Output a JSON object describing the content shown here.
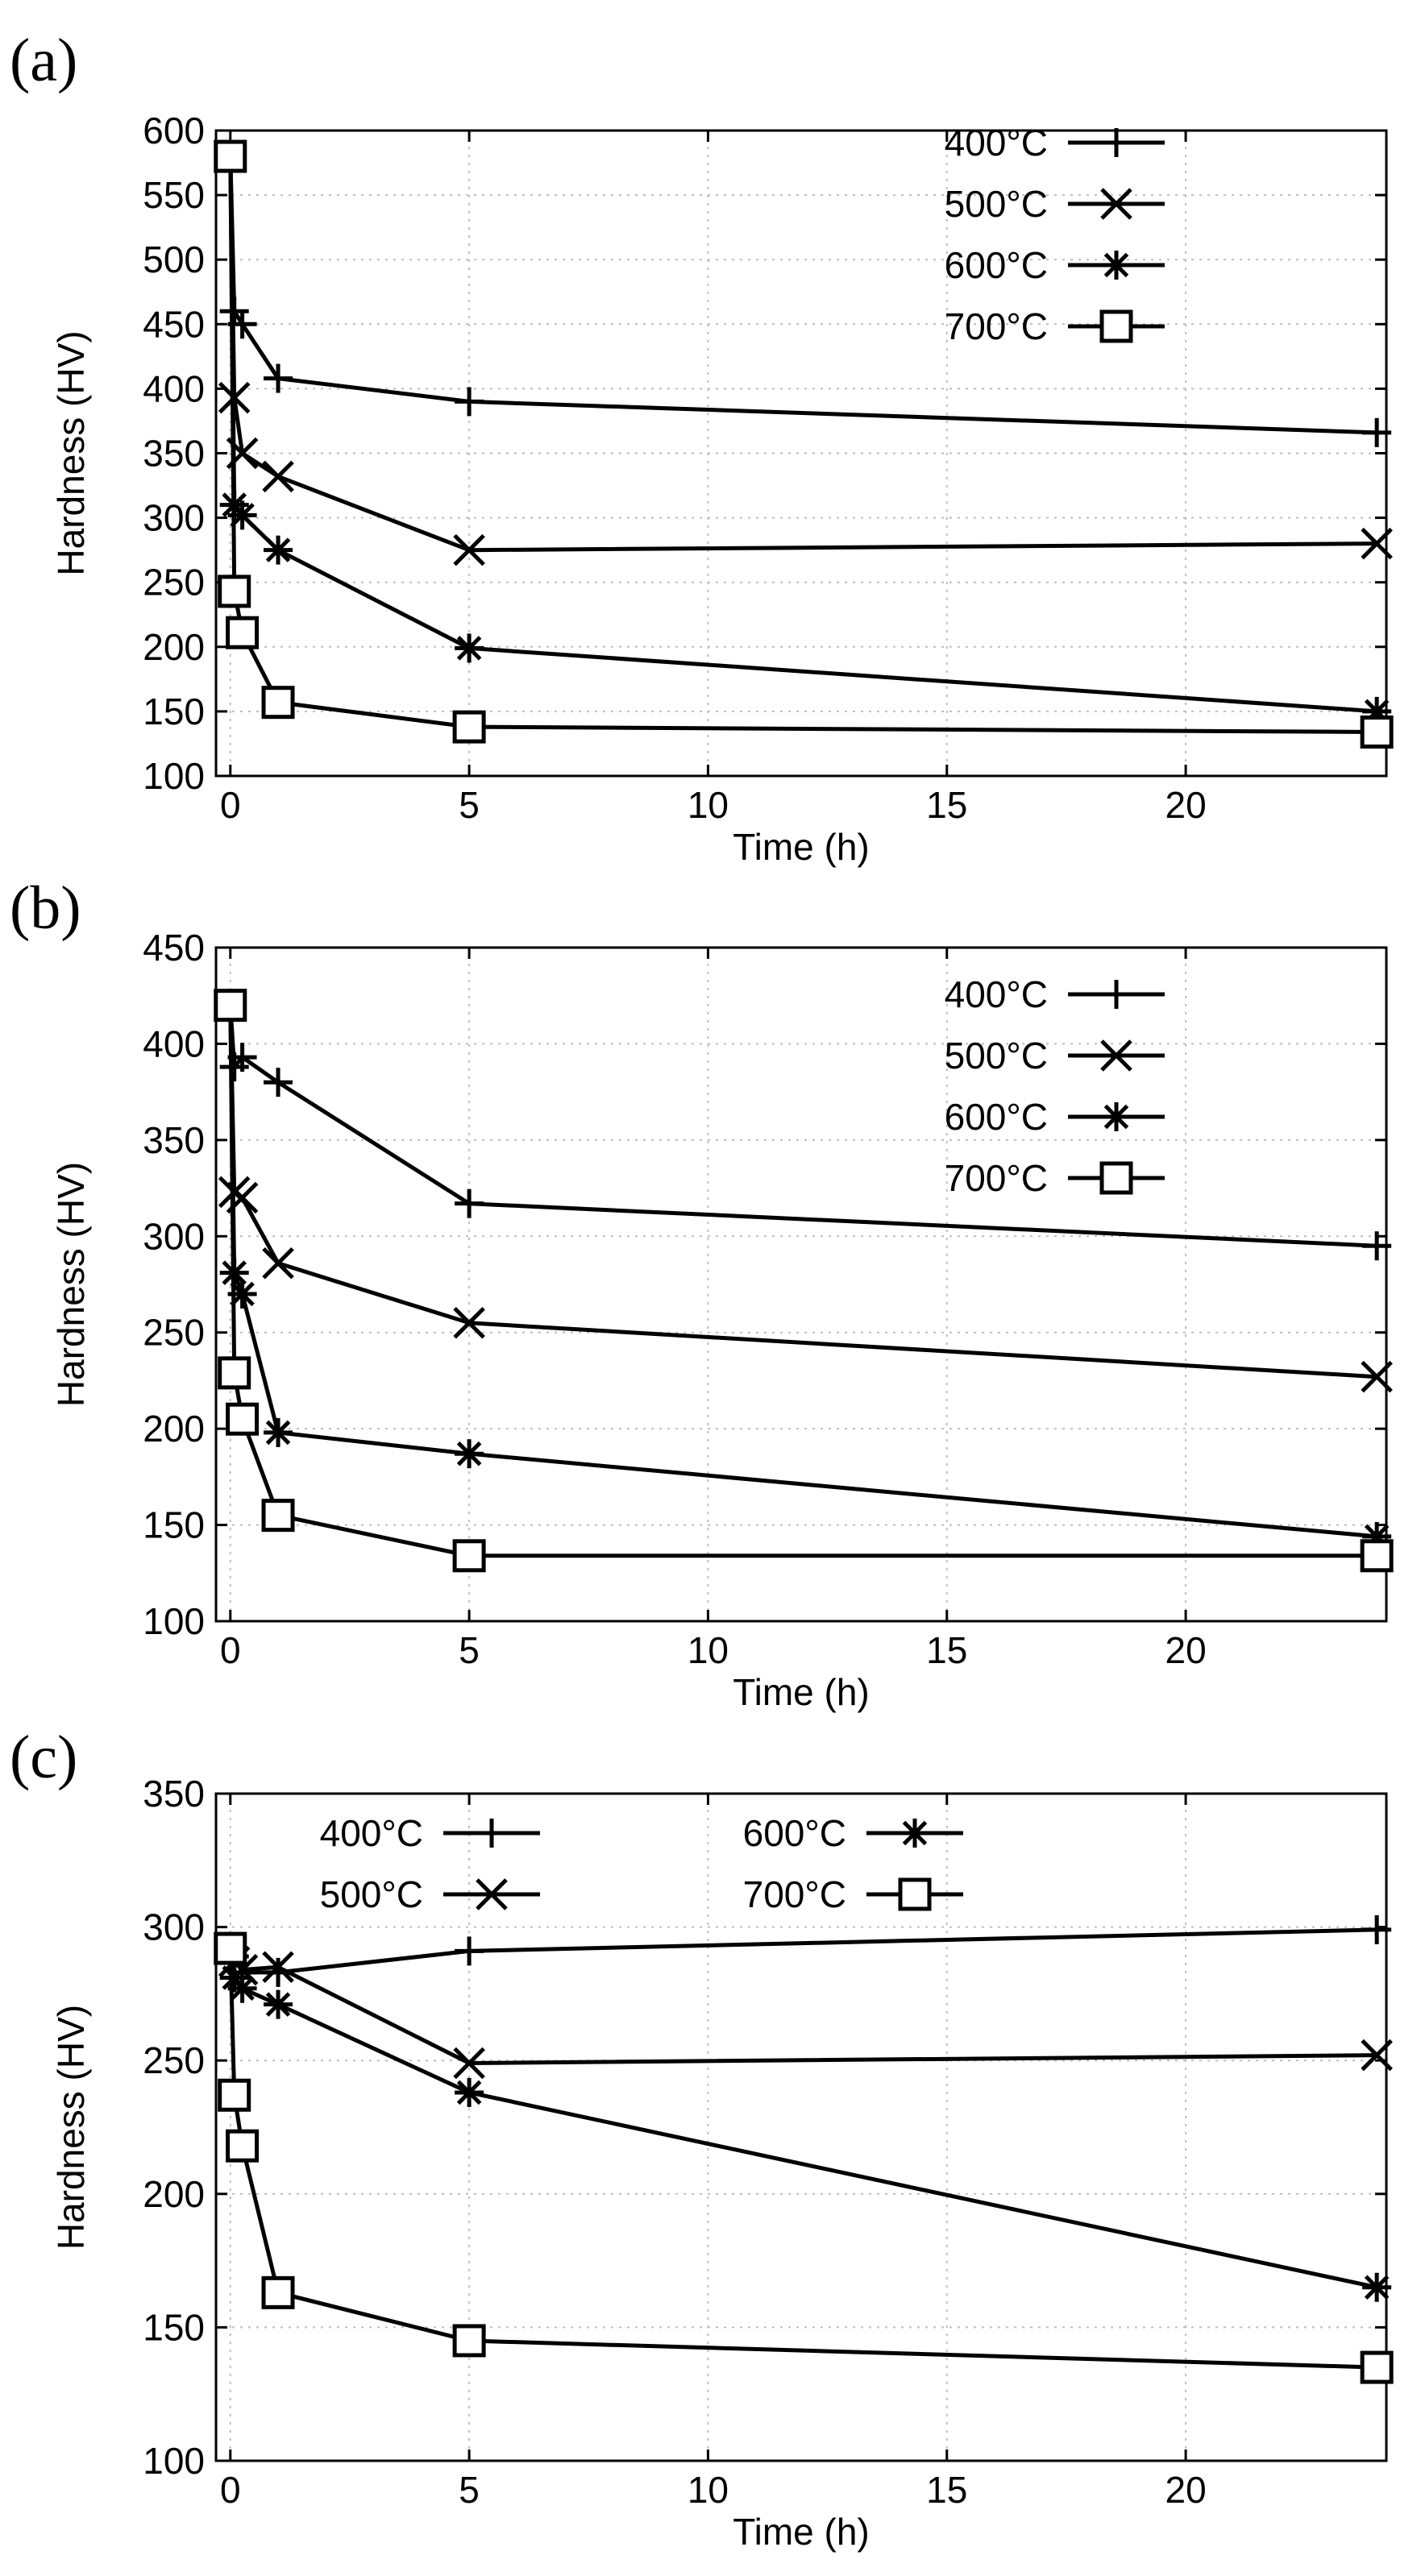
{
  "chart_data": [
    {
      "panel": "(a)",
      "type": "line",
      "xlabel": "Time (h)",
      "ylabel": "Hardness (HV)",
      "xlim": [
        -0.3,
        24.2
      ],
      "ylim": [
        100,
        600
      ],
      "xticks": [
        0,
        5,
        10,
        15,
        20
      ],
      "yticks": [
        100,
        150,
        200,
        250,
        300,
        350,
        400,
        450,
        500,
        550,
        600
      ],
      "grid": true,
      "legend_placement": "top-right",
      "legend_layout": "column",
      "series": [
        {
          "name": "400°C",
          "marker": "plus",
          "x": [
            0,
            0.083,
            0.25,
            1,
            5,
            24
          ],
          "values": [
            580,
            460,
            450,
            408,
            390,
            366
          ]
        },
        {
          "name": "500°C",
          "marker": "cross",
          "x": [
            0,
            0.083,
            0.25,
            1,
            5,
            24
          ],
          "values": [
            580,
            393,
            350,
            332,
            275,
            280
          ]
        },
        {
          "name": "600°C",
          "marker": "star",
          "x": [
            0,
            0.083,
            0.25,
            1,
            5,
            24
          ],
          "values": [
            580,
            310,
            302,
            275,
            199,
            150
          ]
        },
        {
          "name": "700°C",
          "marker": "square",
          "x": [
            0,
            0.083,
            0.25,
            1,
            5,
            24
          ],
          "values": [
            580,
            243,
            211,
            157,
            138,
            134
          ]
        }
      ]
    },
    {
      "panel": "(b)",
      "type": "line",
      "xlabel": "Time (h)",
      "ylabel": "Hardness (HV)",
      "xlim": [
        -0.3,
        24.2
      ],
      "ylim": [
        100,
        450
      ],
      "xticks": [
        0,
        5,
        10,
        15,
        20
      ],
      "yticks": [
        100,
        150,
        200,
        250,
        300,
        350,
        400,
        450
      ],
      "grid": true,
      "legend_placement": "top-right",
      "legend_layout": "column",
      "series": [
        {
          "name": "400°C",
          "marker": "plus",
          "x": [
            0,
            0.083,
            0.25,
            1,
            5,
            24
          ],
          "values": [
            420,
            388,
            393,
            380,
            317,
            295
          ]
        },
        {
          "name": "500°C",
          "marker": "cross",
          "x": [
            0,
            0.083,
            0.25,
            1,
            5,
            24
          ],
          "values": [
            420,
            323,
            320,
            286,
            255,
            227
          ]
        },
        {
          "name": "600°C",
          "marker": "star",
          "x": [
            0,
            0.083,
            0.25,
            1,
            5,
            24
          ],
          "values": [
            420,
            281,
            270,
            198,
            187,
            144
          ]
        },
        {
          "name": "700°C",
          "marker": "square",
          "x": [
            0,
            0.083,
            0.25,
            1,
            5,
            24
          ],
          "values": [
            420,
            229,
            205,
            155,
            134,
            134
          ]
        }
      ]
    },
    {
      "panel": "(c)",
      "type": "line",
      "xlabel": "Time (h)",
      "ylabel": "Hardness (HV)",
      "xlim": [
        -0.3,
        24.2
      ],
      "ylim": [
        100,
        350
      ],
      "xticks": [
        0,
        5,
        10,
        15,
        20
      ],
      "yticks": [
        100,
        150,
        200,
        250,
        300,
        350
      ],
      "grid": true,
      "legend_placement": "top",
      "legend_layout": "two-columns",
      "series": [
        {
          "name": "400°C",
          "marker": "plus",
          "x": [
            0,
            0.083,
            0.25,
            1,
            5,
            24
          ],
          "values": [
            292,
            289,
            283,
            283,
            291,
            299
          ]
        },
        {
          "name": "500°C",
          "marker": "cross",
          "x": [
            0,
            0.083,
            0.25,
            1,
            5,
            24
          ],
          "values": [
            292,
            287,
            284,
            285,
            249,
            252
          ]
        },
        {
          "name": "600°C",
          "marker": "star",
          "x": [
            0,
            0.083,
            0.25,
            1,
            5,
            24
          ],
          "values": [
            292,
            281,
            277,
            271,
            238,
            165
          ]
        },
        {
          "name": "700°C",
          "marker": "square",
          "x": [
            0,
            0.083,
            0.25,
            1,
            5,
            24
          ],
          "values": [
            292,
            237,
            218,
            163,
            145,
            135
          ]
        }
      ]
    }
  ]
}
